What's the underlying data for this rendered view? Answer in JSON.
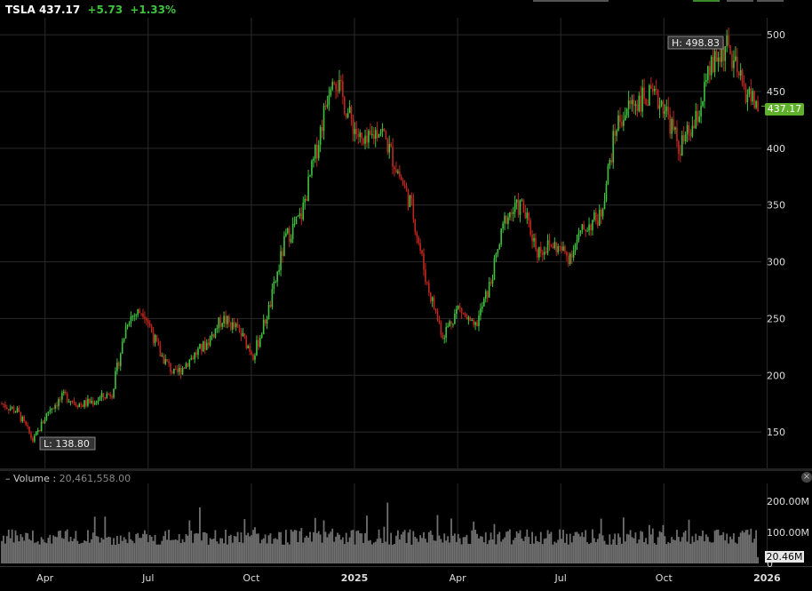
{
  "header": {
    "symbol": "TSLA",
    "price": "437.17",
    "change": "+5.73",
    "change_pct": "+1.33%"
  },
  "price_tag": "437.17",
  "volume_panel": {
    "label": "– Volume :",
    "value": "20,461,558.00",
    "tag": "20.46M",
    "close_icon": "close-icon"
  },
  "colors": {
    "up": "#3ec33e",
    "down": "#c0261f",
    "grid": "#2a2a2a",
    "volume": "#707070",
    "price_tag": "#5fb02a"
  },
  "chart_data": [
    {
      "type": "candlestick",
      "title": "",
      "ylim": [
        118,
        515
      ],
      "y_ticks": [
        150,
        200,
        250,
        300,
        350,
        400,
        450,
        500
      ],
      "x_ticks": [
        "Apr",
        "Jul",
        "Oct",
        "2025",
        "Apr",
        "Jul",
        "Oct",
        "2026"
      ],
      "x_tick_positions": [
        "2024-04",
        "2024-07",
        "2024-10",
        "2025-01",
        "2025-04",
        "2025-07",
        "2025-10",
        "2026-01"
      ],
      "grid": true,
      "annotations": [
        {
          "text": "H: 498.83",
          "value": 498.83,
          "date": "2025-12"
        },
        {
          "text": "L: 138.80",
          "value": 138.8,
          "date": "2024-04"
        }
      ],
      "last_price": 437.17,
      "series_points": [
        {
          "date": "2024-03",
          "close": 175
        },
        {
          "date": "2024-04a",
          "close": 168
        },
        {
          "date": "2024-04b",
          "close": 142
        },
        {
          "date": "2024-04c",
          "close": 170
        },
        {
          "date": "2024-05a",
          "close": 182
        },
        {
          "date": "2024-05b",
          "close": 174
        },
        {
          "date": "2024-06a",
          "close": 178
        },
        {
          "date": "2024-06b",
          "close": 185
        },
        {
          "date": "2024-07a",
          "close": 250
        },
        {
          "date": "2024-07b",
          "close": 258
        },
        {
          "date": "2024-07c",
          "close": 220
        },
        {
          "date": "2024-08a",
          "close": 200
        },
        {
          "date": "2024-08b",
          "close": 215
        },
        {
          "date": "2024-09a",
          "close": 228
        },
        {
          "date": "2024-09b",
          "close": 250
        },
        {
          "date": "2024-10a",
          "close": 240
        },
        {
          "date": "2024-10b",
          "close": 218
        },
        {
          "date": "2024-10c",
          "close": 260
        },
        {
          "date": "2024-11a",
          "close": 320
        },
        {
          "date": "2024-11b",
          "close": 340
        },
        {
          "date": "2024-12a",
          "close": 400
        },
        {
          "date": "2024-12b",
          "close": 470
        },
        {
          "date": "2024-12c",
          "close": 430
        },
        {
          "date": "2025-01a",
          "close": 400
        },
        {
          "date": "2025-01b",
          "close": 420
        },
        {
          "date": "2025-02a",
          "close": 385
        },
        {
          "date": "2025-02b",
          "close": 350
        },
        {
          "date": "2025-03a",
          "close": 280
        },
        {
          "date": "2025-03b",
          "close": 235
        },
        {
          "date": "2025-04a",
          "close": 260
        },
        {
          "date": "2025-04b",
          "close": 240
        },
        {
          "date": "2025-05a",
          "close": 280
        },
        {
          "date": "2025-05b",
          "close": 340
        },
        {
          "date": "2025-06a",
          "close": 350
        },
        {
          "date": "2025-06b",
          "close": 310
        },
        {
          "date": "2025-07a",
          "close": 315
        },
        {
          "date": "2025-07b",
          "close": 305
        },
        {
          "date": "2025-08a",
          "close": 330
        },
        {
          "date": "2025-08b",
          "close": 340
        },
        {
          "date": "2025-09a",
          "close": 420
        },
        {
          "date": "2025-09b",
          "close": 440
        },
        {
          "date": "2025-10a",
          "close": 445
        },
        {
          "date": "2025-10b",
          "close": 440
        },
        {
          "date": "2025-11a",
          "close": 400
        },
        {
          "date": "2025-11b",
          "close": 420
        },
        {
          "date": "2025-12a",
          "close": 470
        },
        {
          "date": "2025-12b",
          "close": 490
        },
        {
          "date": "2025-12c",
          "close": 455
        },
        {
          "date": "2026-01",
          "close": 437
        }
      ]
    },
    {
      "type": "bar",
      "title": "Volume",
      "ylim": [
        0,
        240
      ],
      "y_ticks": [
        "0",
        "100.00M",
        "200.00M"
      ],
      "y_tick_values": [
        0,
        100,
        200
      ],
      "last_value": 20.46,
      "unit": "M"
    }
  ]
}
